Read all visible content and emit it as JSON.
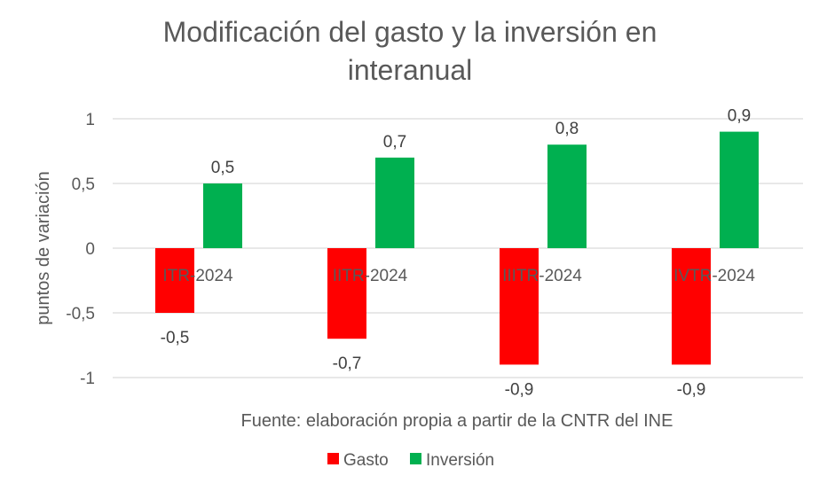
{
  "chart_data": {
    "type": "bar",
    "title_lines": [
      "Modificación del gasto y la inversión en",
      "interanual"
    ],
    "ylabel": "puntos de variación",
    "xlabel": "Fuente: elaboración propia a partir de la CNTR del INE",
    "categories": [
      "ITR-2024",
      "IITR-2024",
      "IIITR-2024",
      "IVTR-2024"
    ],
    "series": [
      {
        "name": "Gasto",
        "color": "#FF0000",
        "values": [
          -0.5,
          -0.7,
          -0.9,
          -0.9
        ],
        "labels": [
          "-0,5",
          "-0,7",
          "-0,9",
          "-0,9"
        ]
      },
      {
        "name": "Inversión",
        "color": "#00B050",
        "values": [
          0.5,
          0.7,
          0.8,
          0.9
        ],
        "labels": [
          "0,5",
          "0,7",
          "0,8",
          "0,9"
        ]
      }
    ],
    "ylim": [
      -1,
      1
    ],
    "yticks": [
      1,
      0.5,
      0,
      -0.5,
      -1
    ],
    "ytick_labels": [
      "1",
      "0,5",
      "0",
      "-0,5",
      "-1"
    ],
    "grid": true,
    "legend": "bottom"
  }
}
